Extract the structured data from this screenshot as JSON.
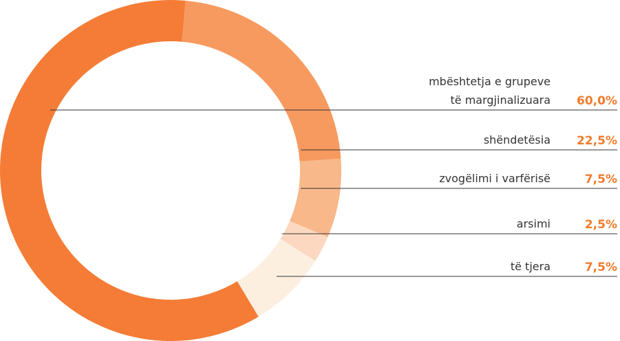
{
  "chart_data": {
    "type": "donut",
    "categories": [
      "mbështetja e grupeve\ntë  margjinalizuara",
      "shëndetësia",
      "zvogëlimi i varfërisë",
      "arsimi",
      "të tjera"
    ],
    "values": [
      60.0,
      22.5,
      7.5,
      2.5,
      7.5
    ],
    "value_labels": [
      "60,0%",
      "22,5%",
      "7,5%",
      "2,5%",
      "7,5%"
    ],
    "colors": [
      "#f47c36",
      "#f79a5f",
      "#f8b88a",
      "#fcd8c0",
      "#fcefe0"
    ]
  }
}
